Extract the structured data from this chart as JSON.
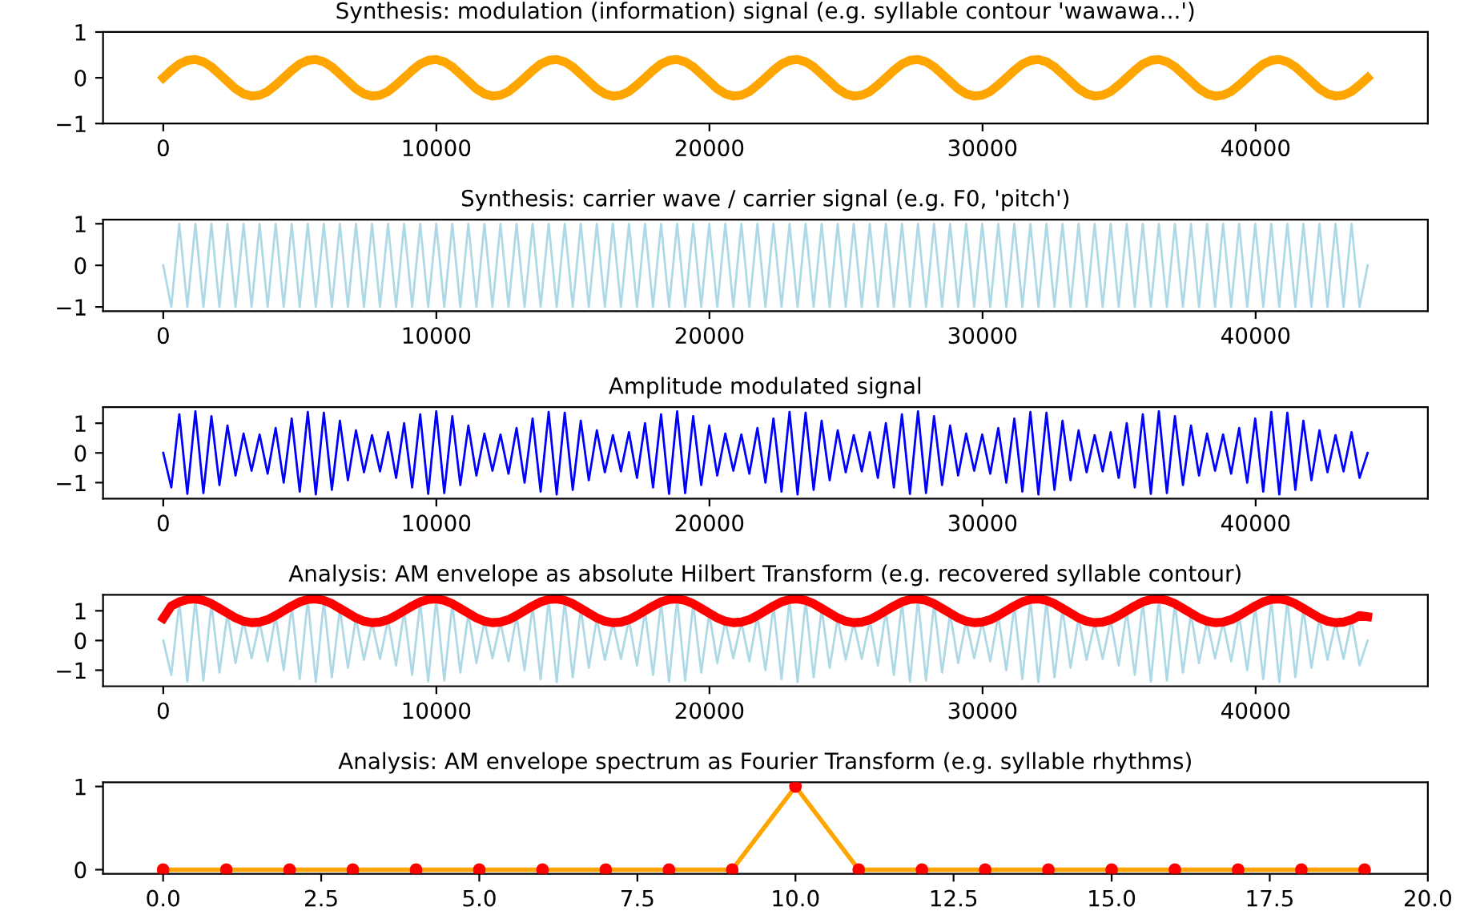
{
  "chart_data": [
    {
      "type": "line",
      "title": "Synthesis: modulation (information) signal (e.g. syllable contour 'wawawa...')",
      "xlim": [
        -2205,
        46305
      ],
      "xticks": [
        0,
        10000,
        20000,
        30000,
        40000
      ],
      "ylim": [
        -1,
        1
      ],
      "yticks": [
        -1,
        0,
        1
      ],
      "grid": false,
      "legend": false,
      "x": [
        0,
        294,
        588,
        882,
        1176,
        1470,
        1764,
        2058,
        2352,
        2646,
        2940,
        3234,
        3528,
        3822,
        4116,
        4410,
        4704,
        4998,
        5292,
        5586,
        5880,
        6174,
        6468,
        6762,
        7056,
        7350,
        7644,
        7938,
        8232,
        8526,
        8820,
        9114,
        9408,
        9702,
        9996,
        10290,
        10584,
        10878,
        11172,
        11466,
        11760,
        12054,
        12348,
        12642,
        12936,
        13230,
        13524,
        13818,
        14112,
        14406,
        14700,
        14994,
        15288,
        15582,
        15876,
        16170,
        16464,
        16758,
        17052,
        17346,
        17640,
        17934,
        18228,
        18522,
        18816,
        19110,
        19404,
        19698,
        19992,
        20286,
        20580,
        20874,
        21168,
        21462,
        21756,
        22050,
        22344,
        22638,
        22932,
        23226,
        23520,
        23814,
        24108,
        24402,
        24696,
        24990,
        25284,
        25578,
        25872,
        26166,
        26460,
        26754,
        27048,
        27342,
        27636,
        27930,
        28224,
        28518,
        28812,
        29106,
        29400,
        29694,
        29988,
        30282,
        30576,
        30870,
        31164,
        31458,
        31752,
        32046,
        32340,
        32634,
        32928,
        33222,
        33516,
        33810,
        34104,
        34398,
        34692,
        34986,
        35280,
        35574,
        35868,
        36162,
        36456,
        36750,
        37044,
        37338,
        37632,
        37926,
        38220,
        38514,
        38808,
        39102,
        39396,
        39690,
        39984,
        40278,
        40572,
        40866,
        41160,
        41454,
        41748,
        42042,
        42336,
        42630,
        42924,
        43218,
        43512,
        43806,
        44100
      ],
      "series": [
        {
          "color": "#ffa500",
          "values": [
            0,
            0.16,
            0.3,
            0.38,
            0.4,
            0.35,
            0.24,
            0.08,
            -0.08,
            -0.24,
            -0.35,
            -0.4,
            -0.38,
            -0.3,
            -0.16,
            0,
            0.16,
            0.3,
            0.38,
            0.4,
            0.35,
            0.24,
            0.08,
            -0.08,
            -0.24,
            -0.35,
            -0.4,
            -0.38,
            -0.3,
            -0.16,
            0,
            0.16,
            0.3,
            0.38,
            0.4,
            0.35,
            0.24,
            0.08,
            -0.08,
            -0.24,
            -0.35,
            -0.4,
            -0.38,
            -0.3,
            -0.16,
            0,
            0.16,
            0.3,
            0.38,
            0.4,
            0.35,
            0.24,
            0.08,
            -0.08,
            -0.24,
            -0.35,
            -0.4,
            -0.38,
            -0.3,
            -0.16,
            0,
            0.16,
            0.3,
            0.38,
            0.4,
            0.35,
            0.24,
            0.08,
            -0.08,
            -0.24,
            -0.35,
            -0.4,
            -0.38,
            -0.3,
            -0.16,
            0,
            0.16,
            0.3,
            0.38,
            0.4,
            0.35,
            0.24,
            0.08,
            -0.08,
            -0.24,
            -0.35,
            -0.4,
            -0.38,
            -0.3,
            -0.16,
            0,
            0.16,
            0.3,
            0.38,
            0.4,
            0.35,
            0.24,
            0.08,
            -0.08,
            -0.24,
            -0.35,
            -0.4,
            -0.38,
            -0.3,
            -0.16,
            0,
            0.16,
            0.3,
            0.38,
            0.4,
            0.35,
            0.24,
            0.08,
            -0.08,
            -0.24,
            -0.35,
            -0.4,
            -0.38,
            -0.3,
            -0.16,
            0,
            0.16,
            0.3,
            0.38,
            0.4,
            0.35,
            0.24,
            0.08,
            -0.08,
            -0.24,
            -0.35,
            -0.4,
            -0.38,
            -0.3,
            -0.16,
            0,
            0.16,
            0.3,
            0.38,
            0.4,
            0.35,
            0.24,
            0.08,
            -0.08,
            -0.24,
            -0.35,
            -0.4,
            -0.38,
            -0.3,
            -0.16,
            0
          ]
        }
      ]
    },
    {
      "type": "line",
      "title": "Synthesis: carrier wave / carrier signal (e.g. F0, 'pitch')",
      "xlim": [
        -2205,
        46305
      ],
      "xticks": [
        0,
        10000,
        20000,
        30000,
        40000
      ],
      "ylim": [
        -1.1,
        1.1
      ],
      "yticks": [
        -1,
        0,
        1
      ],
      "grid": false,
      "legend": false,
      "x": [
        0,
        294,
        588,
        882,
        1176,
        1470,
        1764,
        2058,
        2352,
        2646,
        2940,
        3234,
        3528,
        3822,
        4116,
        4410,
        4704,
        4998,
        5292,
        5586,
        5880,
        6174,
        6468,
        6762,
        7056,
        7350,
        7644,
        7938,
        8232,
        8526,
        8820,
        9114,
        9408,
        9702,
        9996,
        10290,
        10584,
        10878,
        11172,
        11466,
        11760,
        12054,
        12348,
        12642,
        12936,
        13230,
        13524,
        13818,
        14112,
        14406,
        14700,
        14994,
        15288,
        15582,
        15876,
        16170,
        16464,
        16758,
        17052,
        17346,
        17640,
        17934,
        18228,
        18522,
        18816,
        19110,
        19404,
        19698,
        19992,
        20286,
        20580,
        20874,
        21168,
        21462,
        21756,
        22050,
        22344,
        22638,
        22932,
        23226,
        23520,
        23814,
        24108,
        24402,
        24696,
        24990,
        25284,
        25578,
        25872,
        26166,
        26460,
        26754,
        27048,
        27342,
        27636,
        27930,
        28224,
        28518,
        28812,
        29106,
        29400,
        29694,
        29988,
        30282,
        30576,
        30870,
        31164,
        31458,
        31752,
        32046,
        32340,
        32634,
        32928,
        33222,
        33516,
        33810,
        34104,
        34398,
        34692,
        34986,
        35280,
        35574,
        35868,
        36162,
        36456,
        36750,
        37044,
        37338,
        37632,
        37926,
        38220,
        38514,
        38808,
        39102,
        39396,
        39690,
        39984,
        40278,
        40572,
        40866,
        41160,
        41454,
        41748,
        42042,
        42336,
        42630,
        42924,
        43218,
        43512,
        43806,
        44100
      ],
      "series": [
        {
          "color": "#add8e6",
          "values": [
            0,
            -1,
            1,
            -1,
            1,
            -1,
            1,
            -1,
            1,
            -1,
            1,
            -1,
            1,
            -1,
            1,
            -1,
            1,
            -1,
            1,
            -1,
            1,
            -1,
            1,
            -1,
            1,
            -1,
            1,
            -1,
            1,
            -1,
            1,
            -1,
            1,
            -1,
            1,
            -1,
            1,
            -1,
            1,
            -1,
            1,
            -1,
            1,
            -1,
            1,
            -1,
            1,
            -1,
            1,
            -1,
            1,
            -1,
            1,
            -1,
            1,
            -1,
            1,
            -1,
            1,
            -1,
            1,
            -1,
            1,
            -1,
            1,
            -1,
            1,
            -1,
            1,
            -1,
            1,
            -1,
            1,
            -1,
            1,
            -1,
            1,
            -1,
            1,
            -1,
            1,
            -1,
            1,
            -1,
            1,
            -1,
            1,
            -1,
            1,
            -1,
            1,
            -1,
            1,
            -1,
            1,
            -1,
            1,
            -1,
            1,
            -1,
            1,
            -1,
            1,
            -1,
            1,
            -1,
            1,
            -1,
            1,
            -1,
            1,
            -1,
            1,
            -1,
            1,
            -1,
            1,
            -1,
            1,
            -1,
            1,
            -1,
            1,
            -1,
            1,
            -1,
            1,
            -1,
            1,
            -1,
            1,
            -1,
            1,
            -1,
            1,
            -1,
            1,
            -1,
            1,
            -1,
            1,
            -1,
            1,
            -1,
            1,
            -1,
            1,
            -1,
            1,
            -1,
            0
          ]
        }
      ]
    },
    {
      "type": "line",
      "title": "Amplitude modulated signal",
      "xlim": [
        -2205,
        46305
      ],
      "xticks": [
        0,
        10000,
        20000,
        30000,
        40000
      ],
      "ylim": [
        -1.54,
        1.54
      ],
      "yticks": [
        -1,
        0,
        1
      ],
      "grid": false,
      "legend": false,
      "x": [
        0,
        294,
        588,
        882,
        1176,
        1470,
        1764,
        2058,
        2352,
        2646,
        2940,
        3234,
        3528,
        3822,
        4116,
        4410,
        4704,
        4998,
        5292,
        5586,
        5880,
        6174,
        6468,
        6762,
        7056,
        7350,
        7644,
        7938,
        8232,
        8526,
        8820,
        9114,
        9408,
        9702,
        9996,
        10290,
        10584,
        10878,
        11172,
        11466,
        11760,
        12054,
        12348,
        12642,
        12936,
        13230,
        13524,
        13818,
        14112,
        14406,
        14700,
        14994,
        15288,
        15582,
        15876,
        16170,
        16464,
        16758,
        17052,
        17346,
        17640,
        17934,
        18228,
        18522,
        18816,
        19110,
        19404,
        19698,
        19992,
        20286,
        20580,
        20874,
        21168,
        21462,
        21756,
        22050,
        22344,
        22638,
        22932,
        23226,
        23520,
        23814,
        24108,
        24402,
        24696,
        24990,
        25284,
        25578,
        25872,
        26166,
        26460,
        26754,
        27048,
        27342,
        27636,
        27930,
        28224,
        28518,
        28812,
        29106,
        29400,
        29694,
        29988,
        30282,
        30576,
        30870,
        31164,
        31458,
        31752,
        32046,
        32340,
        32634,
        32928,
        33222,
        33516,
        33810,
        34104,
        34398,
        34692,
        34986,
        35280,
        35574,
        35868,
        36162,
        36456,
        36750,
        37044,
        37338,
        37632,
        37926,
        38220,
        38514,
        38808,
        39102,
        39396,
        39690,
        39984,
        40278,
        40572,
        40866,
        41160,
        41454,
        41748,
        42042,
        42336,
        42630,
        42924,
        43218,
        43512,
        43806,
        44100
      ],
      "series": [
        {
          "color": "#0000ff",
          "values": [
            0,
            -1.16,
            1.3,
            -1.38,
            1.4,
            -1.35,
            1.24,
            -1.08,
            0.92,
            -0.76,
            0.65,
            -0.6,
            0.62,
            -0.7,
            0.84,
            -1,
            1.16,
            -1.3,
            1.38,
            -1.4,
            1.35,
            -1.24,
            1.08,
            -0.92,
            0.76,
            -0.65,
            0.6,
            -0.62,
            0.7,
            -0.84,
            1,
            -1.16,
            1.3,
            -1.38,
            1.4,
            -1.35,
            1.24,
            -1.08,
            0.92,
            -0.76,
            0.65,
            -0.6,
            0.62,
            -0.7,
            0.84,
            -1,
            1.16,
            -1.3,
            1.38,
            -1.4,
            1.35,
            -1.24,
            1.08,
            -0.92,
            0.76,
            -0.65,
            0.6,
            -0.62,
            0.7,
            -0.84,
            1,
            -1.16,
            1.3,
            -1.38,
            1.4,
            -1.35,
            1.24,
            -1.08,
            0.92,
            -0.76,
            0.65,
            -0.6,
            0.62,
            -0.7,
            0.84,
            -1,
            1.16,
            -1.3,
            1.38,
            -1.4,
            1.35,
            -1.24,
            1.08,
            -0.92,
            0.76,
            -0.65,
            0.6,
            -0.62,
            0.7,
            -0.84,
            1,
            -1.16,
            1.3,
            -1.38,
            1.4,
            -1.35,
            1.24,
            -1.08,
            0.92,
            -0.76,
            0.65,
            -0.6,
            0.62,
            -0.7,
            0.84,
            -1,
            1.16,
            -1.3,
            1.38,
            -1.4,
            1.35,
            -1.24,
            1.08,
            -0.92,
            0.76,
            -0.65,
            0.6,
            -0.62,
            0.7,
            -0.84,
            1,
            -1.16,
            1.3,
            -1.38,
            1.4,
            -1.35,
            1.24,
            -1.08,
            0.92,
            -0.76,
            0.65,
            -0.6,
            0.62,
            -0.7,
            0.84,
            -1,
            1.16,
            -1.3,
            1.38,
            -1.4,
            1.35,
            -1.24,
            1.08,
            -0.92,
            0.76,
            -0.65,
            0.6,
            -0.62,
            0.7,
            -0.84,
            0
          ]
        }
      ]
    },
    {
      "type": "line",
      "title": "Analysis: AM envelope as absolute Hilbert Transform (e.g. recovered syllable contour)",
      "xlim": [
        -2205,
        46305
      ],
      "xticks": [
        0,
        10000,
        20000,
        30000,
        40000
      ],
      "ylim": [
        -1.54,
        1.54
      ],
      "yticks": [
        -1,
        0,
        1
      ],
      "grid": false,
      "legend": false,
      "x": [
        0,
        294,
        588,
        882,
        1176,
        1470,
        1764,
        2058,
        2352,
        2646,
        2940,
        3234,
        3528,
        3822,
        4116,
        4410,
        4704,
        4998,
        5292,
        5586,
        5880,
        6174,
        6468,
        6762,
        7056,
        7350,
        7644,
        7938,
        8232,
        8526,
        8820,
        9114,
        9408,
        9702,
        9996,
        10290,
        10584,
        10878,
        11172,
        11466,
        11760,
        12054,
        12348,
        12642,
        12936,
        13230,
        13524,
        13818,
        14112,
        14406,
        14700,
        14994,
        15288,
        15582,
        15876,
        16170,
        16464,
        16758,
        17052,
        17346,
        17640,
        17934,
        18228,
        18522,
        18816,
        19110,
        19404,
        19698,
        19992,
        20286,
        20580,
        20874,
        21168,
        21462,
        21756,
        22050,
        22344,
        22638,
        22932,
        23226,
        23520,
        23814,
        24108,
        24402,
        24696,
        24990,
        25284,
        25578,
        25872,
        26166,
        26460,
        26754,
        27048,
        27342,
        27636,
        27930,
        28224,
        28518,
        28812,
        29106,
        29400,
        29694,
        29988,
        30282,
        30576,
        30870,
        31164,
        31458,
        31752,
        32046,
        32340,
        32634,
        32928,
        33222,
        33516,
        33810,
        34104,
        34398,
        34692,
        34986,
        35280,
        35574,
        35868,
        36162,
        36456,
        36750,
        37044,
        37338,
        37632,
        37926,
        38220,
        38514,
        38808,
        39102,
        39396,
        39690,
        39984,
        40278,
        40572,
        40866,
        41160,
        41454,
        41748,
        42042,
        42336,
        42630,
        42924,
        43218,
        43512,
        43806,
        44100
      ],
      "series": [
        {
          "color": "#add8e6",
          "values": [
            0,
            -1.16,
            1.3,
            -1.38,
            1.4,
            -1.35,
            1.24,
            -1.08,
            0.92,
            -0.76,
            0.65,
            -0.6,
            0.62,
            -0.7,
            0.84,
            -1,
            1.16,
            -1.3,
            1.38,
            -1.4,
            1.35,
            -1.24,
            1.08,
            -0.92,
            0.76,
            -0.65,
            0.6,
            -0.62,
            0.7,
            -0.84,
            1,
            -1.16,
            1.3,
            -1.38,
            1.4,
            -1.35,
            1.24,
            -1.08,
            0.92,
            -0.76,
            0.65,
            -0.6,
            0.62,
            -0.7,
            0.84,
            -1,
            1.16,
            -1.3,
            1.38,
            -1.4,
            1.35,
            -1.24,
            1.08,
            -0.92,
            0.76,
            -0.65,
            0.6,
            -0.62,
            0.7,
            -0.84,
            1,
            -1.16,
            1.3,
            -1.38,
            1.4,
            -1.35,
            1.24,
            -1.08,
            0.92,
            -0.76,
            0.65,
            -0.6,
            0.62,
            -0.7,
            0.84,
            -1,
            1.16,
            -1.3,
            1.38,
            -1.4,
            1.35,
            -1.24,
            1.08,
            -0.92,
            0.76,
            -0.65,
            0.6,
            -0.62,
            0.7,
            -0.84,
            1,
            -1.16,
            1.3,
            -1.38,
            1.4,
            -1.35,
            1.24,
            -1.08,
            0.92,
            -0.76,
            0.65,
            -0.6,
            0.62,
            -0.7,
            0.84,
            -1,
            1.16,
            -1.3,
            1.38,
            -1.4,
            1.35,
            -1.24,
            1.08,
            -0.92,
            0.76,
            -0.65,
            0.6,
            -0.62,
            0.7,
            -0.84,
            1,
            -1.16,
            1.3,
            -1.38,
            1.4,
            -1.35,
            1.24,
            -1.08,
            0.92,
            -0.76,
            0.65,
            -0.6,
            0.62,
            -0.7,
            0.84,
            -1,
            1.16,
            -1.3,
            1.38,
            -1.4,
            1.35,
            -1.24,
            1.08,
            -0.92,
            0.76,
            -0.65,
            0.6,
            -0.62,
            0.7,
            -0.84,
            0
          ]
        },
        {
          "color": "#ff0000",
          "values": [
            0.75,
            1.16,
            1.3,
            1.38,
            1.4,
            1.35,
            1.24,
            1.08,
            0.92,
            0.76,
            0.65,
            0.6,
            0.62,
            0.7,
            0.84,
            1,
            1.16,
            1.3,
            1.38,
            1.4,
            1.35,
            1.24,
            1.08,
            0.92,
            0.76,
            0.65,
            0.6,
            0.62,
            0.7,
            0.84,
            1,
            1.16,
            1.3,
            1.38,
            1.4,
            1.35,
            1.24,
            1.08,
            0.92,
            0.76,
            0.65,
            0.6,
            0.62,
            0.7,
            0.84,
            1,
            1.16,
            1.3,
            1.38,
            1.4,
            1.35,
            1.24,
            1.08,
            0.92,
            0.76,
            0.65,
            0.6,
            0.62,
            0.7,
            0.84,
            1,
            1.16,
            1.3,
            1.38,
            1.4,
            1.35,
            1.24,
            1.08,
            0.92,
            0.76,
            0.65,
            0.6,
            0.62,
            0.7,
            0.84,
            1,
            1.16,
            1.3,
            1.38,
            1.4,
            1.35,
            1.24,
            1.08,
            0.92,
            0.76,
            0.65,
            0.6,
            0.62,
            0.7,
            0.84,
            1,
            1.16,
            1.3,
            1.38,
            1.4,
            1.35,
            1.24,
            1.08,
            0.92,
            0.76,
            0.65,
            0.6,
            0.62,
            0.7,
            0.84,
            1,
            1.16,
            1.3,
            1.38,
            1.4,
            1.35,
            1.24,
            1.08,
            0.92,
            0.76,
            0.65,
            0.6,
            0.62,
            0.7,
            0.84,
            1,
            1.16,
            1.3,
            1.38,
            1.4,
            1.35,
            1.24,
            1.08,
            0.92,
            0.76,
            0.65,
            0.6,
            0.62,
            0.7,
            0.84,
            1,
            1.16,
            1.3,
            1.38,
            1.4,
            1.35,
            1.24,
            1.08,
            0.92,
            0.76,
            0.65,
            0.6,
            0.62,
            0.7,
            0.84,
            0.8
          ]
        }
      ]
    },
    {
      "type": "line",
      "title": "Analysis: AM envelope spectrum as Fourier Transform (e.g. syllable rhythms)",
      "xlim": [
        -0.95,
        20
      ],
      "xticks": [
        {
          "value": 0,
          "label": "0.0"
        },
        {
          "value": 2.5,
          "label": "2.5"
        },
        {
          "value": 5,
          "label": "5.0"
        },
        {
          "value": 7.5,
          "label": "7.5"
        },
        {
          "value": 10,
          "label": "10.0"
        },
        {
          "value": 12.5,
          "label": "12.5"
        },
        {
          "value": 15,
          "label": "15.0"
        },
        {
          "value": 17.5,
          "label": "17.5"
        },
        {
          "value": 20,
          "label": "20.0"
        }
      ],
      "ylim": [
        -0.05,
        1.05
      ],
      "yticks": [
        0,
        1
      ],
      "grid": false,
      "legend": false,
      "x": [
        0,
        1,
        2,
        3,
        4,
        5,
        6,
        7,
        8,
        9,
        10,
        11,
        12,
        13,
        14,
        15,
        16,
        17,
        18,
        19
      ],
      "series": [
        {
          "color": "#ffa500",
          "values": [
            0,
            0,
            0,
            0,
            0,
            0,
            0,
            0,
            0,
            0,
            1,
            0,
            0,
            0,
            0,
            0,
            0,
            0,
            0,
            0
          ]
        },
        {
          "type": "scatter",
          "marker": "circle",
          "color": "#ff0000",
          "values": [
            0,
            0,
            0,
            0,
            0,
            0,
            0,
            0,
            0,
            0,
            1,
            0,
            0,
            0,
            0,
            0,
            0,
            0,
            0,
            0
          ]
        }
      ]
    }
  ]
}
